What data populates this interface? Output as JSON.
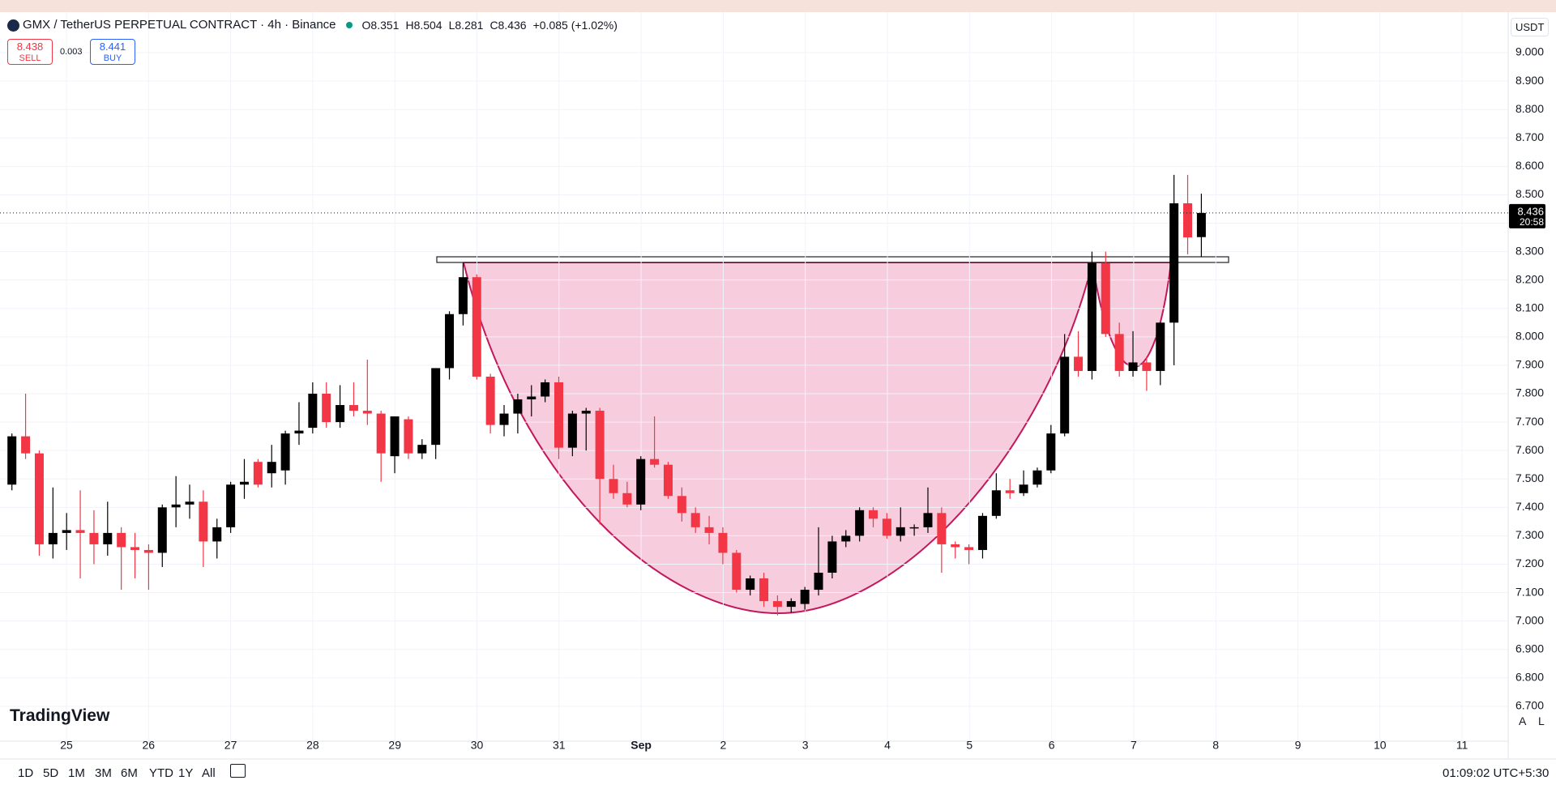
{
  "header": {
    "symbol": "GMX / TetherUS PERPETUAL CONTRACT · 4h · Binance",
    "open": "O8.351",
    "high": "H8.504",
    "low": "L8.281",
    "close": "C8.436",
    "change": "+0.085 (+1.02%)"
  },
  "trade": {
    "sell_price": "8.438",
    "sell": "SELL",
    "spread": "0.003",
    "buy_price": "8.441",
    "buy": "BUY"
  },
  "currency": "USDT",
  "logo": "TradingView",
  "scale_buttons": [
    "A",
    "L"
  ],
  "ranges": [
    "1D",
    "5D",
    "1M",
    "3M",
    "6M",
    "YTD",
    "1Y",
    "All"
  ],
  "clock": "01:09:02 UTC+5:30",
  "countdown": "20:58",
  "chart_data": {
    "type": "candlestick",
    "up_color": "#000000",
    "down_color": "#f23645",
    "grid": true,
    "day_labels": [
      "25",
      "26",
      "27",
      "28",
      "29",
      "30",
      "31",
      "Sep",
      "2",
      "3",
      "4",
      "5",
      "6",
      "7",
      "8",
      "9",
      "10",
      "11"
    ],
    "ylim": [
      6.65,
      9.05
    ],
    "yticks": [
      {
        "value": 6.7,
        "label": "6.700"
      },
      {
        "value": 6.8,
        "label": "6.800"
      },
      {
        "value": 6.9,
        "label": "6.900"
      },
      {
        "value": 7,
        "label": "7.000"
      },
      {
        "value": 7.1,
        "label": "7.100"
      },
      {
        "value": 7.2,
        "label": "7.200"
      },
      {
        "value": 7.3,
        "label": "7.300"
      },
      {
        "value": 7.4,
        "label": "7.400"
      },
      {
        "value": 7.5,
        "label": "7.500"
      },
      {
        "value": 7.6,
        "label": "7.600"
      },
      {
        "value": 7.7,
        "label": "7.700"
      },
      {
        "value": 7.8,
        "label": "7.800"
      },
      {
        "value": 7.9,
        "label": "7.900"
      },
      {
        "value": 8,
        "label": "8.000"
      },
      {
        "value": 8.1,
        "label": "8.100"
      },
      {
        "value": 8.2,
        "label": "8.200"
      },
      {
        "value": 8.3,
        "label": "8.300"
      },
      {
        "value": 8.4,
        "label": "8.400"
      },
      {
        "value": 8.5,
        "label": "8.500"
      },
      {
        "value": 8.6,
        "label": "8.600"
      },
      {
        "value": 8.7,
        "label": "8.700"
      },
      {
        "value": 8.8,
        "label": "8.800"
      },
      {
        "value": 8.9,
        "label": "8.900"
      },
      {
        "value": 9,
        "label": "9.000"
      }
    ],
    "candles": [
      [
        7.48,
        7.66,
        7.46,
        7.65
      ],
      [
        7.65,
        7.8,
        7.57,
        7.59
      ],
      [
        7.59,
        7.6,
        7.23,
        7.27
      ],
      [
        7.27,
        7.47,
        7.22,
        7.31
      ],
      [
        7.31,
        7.38,
        7.25,
        7.32
      ],
      [
        7.32,
        7.46,
        7.15,
        7.31
      ],
      [
        7.31,
        7.39,
        7.2,
        7.27
      ],
      [
        7.27,
        7.42,
        7.23,
        7.31
      ],
      [
        7.31,
        7.33,
        7.11,
        7.26
      ],
      [
        7.26,
        7.31,
        7.15,
        7.25
      ],
      [
        7.25,
        7.27,
        7.11,
        7.24
      ],
      [
        7.24,
        7.41,
        7.19,
        7.4
      ],
      [
        7.4,
        7.51,
        7.33,
        7.41
      ],
      [
        7.41,
        7.48,
        7.36,
        7.42
      ],
      [
        7.42,
        7.46,
        7.19,
        7.28
      ],
      [
        7.28,
        7.36,
        7.22,
        7.33
      ],
      [
        7.33,
        7.49,
        7.31,
        7.48
      ],
      [
        7.48,
        7.57,
        7.43,
        7.49
      ],
      [
        7.56,
        7.57,
        7.47,
        7.48
      ],
      [
        7.52,
        7.62,
        7.47,
        7.56
      ],
      [
        7.53,
        7.67,
        7.48,
        7.66
      ],
      [
        7.66,
        7.77,
        7.62,
        7.67
      ],
      [
        7.68,
        7.84,
        7.66,
        7.8
      ],
      [
        7.8,
        7.84,
        7.68,
        7.7
      ],
      [
        7.7,
        7.83,
        7.68,
        7.76
      ],
      [
        7.76,
        7.84,
        7.72,
        7.74
      ],
      [
        7.74,
        7.92,
        7.69,
        7.73
      ],
      [
        7.73,
        7.74,
        7.49,
        7.59
      ],
      [
        7.58,
        7.72,
        7.52,
        7.72
      ],
      [
        7.71,
        7.72,
        7.57,
        7.59
      ],
      [
        7.59,
        7.64,
        7.57,
        7.62
      ],
      [
        7.62,
        7.89,
        7.57,
        7.89
      ],
      [
        7.89,
        8.09,
        7.85,
        8.08
      ],
      [
        8.08,
        8.26,
        8.04,
        8.21
      ],
      [
        8.21,
        8.22,
        7.85,
        7.86
      ],
      [
        7.86,
        7.87,
        7.66,
        7.69
      ],
      [
        7.69,
        7.76,
        7.65,
        7.73
      ],
      [
        7.73,
        7.8,
        7.66,
        7.78
      ],
      [
        7.78,
        7.83,
        7.72,
        7.79
      ],
      [
        7.79,
        7.85,
        7.77,
        7.84
      ],
      [
        7.84,
        7.86,
        7.57,
        7.61
      ],
      [
        7.61,
        7.74,
        7.58,
        7.73
      ],
      [
        7.73,
        7.75,
        7.6,
        7.74
      ],
      [
        7.74,
        7.75,
        7.34,
        7.5
      ],
      [
        7.5,
        7.55,
        7.43,
        7.45
      ],
      [
        7.45,
        7.49,
        7.4,
        7.41
      ],
      [
        7.41,
        7.58,
        7.39,
        7.57
      ],
      [
        7.57,
        7.72,
        7.54,
        7.55
      ],
      [
        7.55,
        7.56,
        7.43,
        7.44
      ],
      [
        7.44,
        7.47,
        7.35,
        7.38
      ],
      [
        7.38,
        7.4,
        7.31,
        7.33
      ],
      [
        7.33,
        7.37,
        7.27,
        7.31
      ],
      [
        7.31,
        7.33,
        7.2,
        7.24
      ],
      [
        7.24,
        7.25,
        7.1,
        7.11
      ],
      [
        7.11,
        7.16,
        7.09,
        7.15
      ],
      [
        7.15,
        7.17,
        7.05,
        7.07
      ],
      [
        7.07,
        7.09,
        7.02,
        7.05
      ],
      [
        7.05,
        7.08,
        7.03,
        7.07
      ],
      [
        7.06,
        7.12,
        7.04,
        7.11
      ],
      [
        7.11,
        7.33,
        7.09,
        7.17
      ],
      [
        7.17,
        7.3,
        7.15,
        7.28
      ],
      [
        7.28,
        7.32,
        7.26,
        7.3
      ],
      [
        7.3,
        7.4,
        7.28,
        7.39
      ],
      [
        7.39,
        7.4,
        7.33,
        7.36
      ],
      [
        7.36,
        7.38,
        7.29,
        7.3
      ],
      [
        7.3,
        7.4,
        7.28,
        7.33
      ],
      [
        7.33,
        7.34,
        7.3,
        7.33
      ],
      [
        7.33,
        7.47,
        7.31,
        7.38
      ],
      [
        7.38,
        7.4,
        7.17,
        7.27
      ],
      [
        7.27,
        7.28,
        7.22,
        7.26
      ],
      [
        7.26,
        7.27,
        7.2,
        7.25
      ],
      [
        7.25,
        7.38,
        7.22,
        7.37
      ],
      [
        7.37,
        7.52,
        7.36,
        7.46
      ],
      [
        7.46,
        7.5,
        7.43,
        7.45
      ],
      [
        7.45,
        7.53,
        7.44,
        7.48
      ],
      [
        7.48,
        7.54,
        7.47,
        7.53
      ],
      [
        7.53,
        7.69,
        7.52,
        7.66
      ],
      [
        7.66,
        8.01,
        7.65,
        7.93
      ],
      [
        7.93,
        8.02,
        7.86,
        7.88
      ],
      [
        7.88,
        8.3,
        7.85,
        8.26
      ],
      [
        8.26,
        8.3,
        8,
        8.01
      ],
      [
        8.01,
        8.05,
        7.86,
        7.88
      ],
      [
        7.88,
        8.02,
        7.86,
        7.91
      ],
      [
        7.91,
        7.93,
        7.81,
        7.88
      ],
      [
        7.88,
        8.05,
        7.83,
        8.05
      ],
      [
        8.05,
        8.57,
        7.9,
        8.47
      ],
      [
        8.47,
        8.57,
        8.29,
        8.35
      ],
      [
        8.351,
        8.504,
        8.281,
        8.436
      ]
    ]
  }
}
